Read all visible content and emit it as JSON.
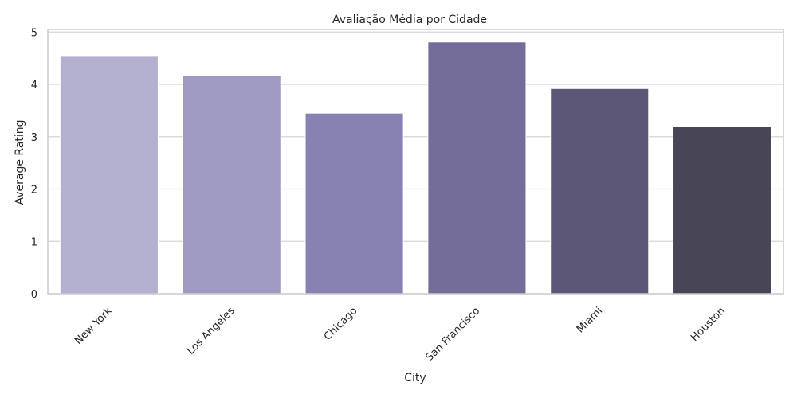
{
  "chart_data": {
    "type": "bar",
    "title": "Avaliação Média por Cidade",
    "xlabel": "City",
    "ylabel": "Average Rating",
    "categories": [
      "New York",
      "Los Angeles",
      "Chicago",
      "San Francisco",
      "Miami",
      "Houston"
    ],
    "values": [
      4.55,
      4.17,
      3.45,
      4.81,
      3.92,
      3.2
    ],
    "ylim": [
      0,
      5.05
    ],
    "yticks": [
      0,
      1,
      2,
      3,
      4,
      5
    ],
    "grid": "horizontal",
    "x_tick_rotation": -45,
    "colors": [
      "#b4b0cf",
      "#9f9ac2",
      "#8882b2",
      "#746c99",
      "#5d5777",
      "#484556"
    ],
    "grid_color": "#d4d4d4",
    "spine_color": "#cccccc",
    "text_color": "#262626"
  }
}
